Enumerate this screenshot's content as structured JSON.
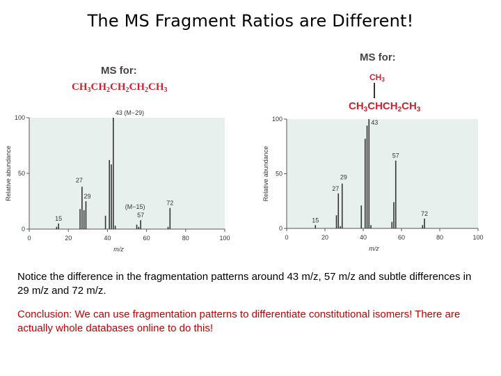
{
  "title": "The MS Fragment Ratios are Different!",
  "left": {
    "ms_label": "MS for:",
    "formula_parts": [
      "CH",
      "3",
      "CH",
      "2",
      "CH",
      "2",
      "CH",
      "2",
      "CH",
      "3"
    ]
  },
  "right": {
    "ms_label": "MS for:",
    "branch_parts": [
      "CH",
      "3"
    ],
    "formula_parts": [
      "CH",
      "3",
      "CHCH",
      "2",
      "CH",
      "3"
    ]
  },
  "text": {
    "notice": "Notice the difference in the fragmentation patterns around 43 m/z, 57 m/z and subtle differences in 29 m/z and 72 m/z.",
    "conclusion": "Conclusion: We can use fragmentation patterns to differentiate constitutional isomers! There are actually whole databases online to do this!"
  },
  "colors": {
    "plot_bg": "#e8f0ed",
    "bar": "#333333",
    "accent_red": "#d0202f"
  },
  "chart_data": [
    {
      "type": "bar",
      "xlabel": "m/z",
      "ylabel": "Relative abundance",
      "xlim": [
        0,
        100
      ],
      "ylim": [
        0,
        100
      ],
      "xticks": [
        0,
        20,
        40,
        60,
        80,
        100
      ],
      "yticks": [
        0,
        50,
        100
      ],
      "x": [
        14,
        15,
        26,
        27,
        28,
        29,
        39,
        41,
        42,
        43,
        44,
        55,
        56,
        57,
        71,
        72
      ],
      "values": [
        2,
        5,
        18,
        38,
        17,
        25,
        12,
        62,
        58,
        100,
        3,
        4,
        2,
        8,
        2,
        19
      ],
      "data_labels": [
        {
          "x": 15,
          "text": "15"
        },
        {
          "x": 27,
          "text": "27"
        },
        {
          "x": 29,
          "text": "29"
        },
        {
          "x": 43,
          "text": "43 (M−29)"
        },
        {
          "x": 57,
          "text": "(M−15)"
        },
        {
          "x": 57,
          "text": "57"
        },
        {
          "x": 72,
          "text": "72"
        }
      ]
    },
    {
      "type": "bar",
      "xlabel": "m/z",
      "ylabel": "Relative abundance",
      "xlim": [
        0,
        100
      ],
      "ylim": [
        0,
        100
      ],
      "xticks": [
        0,
        20,
        40,
        60,
        80,
        100
      ],
      "yticks": [
        0,
        50,
        100
      ],
      "x": [
        15,
        26,
        27,
        28,
        29,
        39,
        41,
        42,
        43,
        44,
        55,
        56,
        57,
        71,
        72
      ],
      "values": [
        3,
        12,
        32,
        2,
        41,
        21,
        82,
        94,
        100,
        3,
        6,
        24,
        62,
        3,
        9
      ],
      "data_labels": [
        {
          "x": 15,
          "text": "15"
        },
        {
          "x": 27,
          "text": "27"
        },
        {
          "x": 29,
          "text": "29"
        },
        {
          "x": 43,
          "text": "43"
        },
        {
          "x": 57,
          "text": "57"
        },
        {
          "x": 72,
          "text": "72"
        }
      ]
    }
  ]
}
